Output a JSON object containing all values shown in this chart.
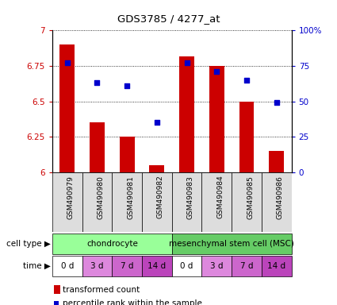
{
  "title": "GDS3785 / 4277_at",
  "samples": [
    "GSM490979",
    "GSM490980",
    "GSM490981",
    "GSM490982",
    "GSM490983",
    "GSM490984",
    "GSM490985",
    "GSM490986"
  ],
  "bar_values": [
    6.9,
    6.35,
    6.25,
    6.05,
    6.82,
    6.75,
    6.5,
    6.15
  ],
  "dot_values": [
    0.77,
    0.635,
    0.61,
    0.35,
    0.77,
    0.71,
    0.65,
    0.49
  ],
  "ylim": [
    6.0,
    7.0
  ],
  "yticks": [
    6.0,
    6.25,
    6.5,
    6.75,
    7.0
  ],
  "ytick_labels": [
    "6",
    "6.25",
    "6.5",
    "6.75",
    "7"
  ],
  "y2tick_labels": [
    "100%",
    "75",
    "50",
    "25",
    "0"
  ],
  "bar_color": "#cc0000",
  "dot_color": "#0000cc",
  "bar_bottom": 6.0,
  "cell_type_groups": [
    {
      "label": "chondrocyte",
      "start": 0,
      "end": 4,
      "color": "#99ff99"
    },
    {
      "label": "mesenchymal stem cell (MSC)",
      "start": 4,
      "end": 8,
      "color": "#66cc66"
    }
  ],
  "time_labels": [
    "0 d",
    "3 d",
    "7 d",
    "14 d",
    "0 d",
    "3 d",
    "7 d",
    "14 d"
  ],
  "time_colors": [
    "#ffffff",
    "#dd88dd",
    "#cc66cc",
    "#bb44bb",
    "#ffffff",
    "#dd88dd",
    "#cc66cc",
    "#bb44bb"
  ],
  "legend_bar_label": "transformed count",
  "legend_dot_label": "percentile rank within the sample",
  "tick_color_left": "#cc0000",
  "tick_color_right": "#0000cc",
  "grid_color": "#000000",
  "background_color": "#ffffff",
  "sample_bg": "#dddddd",
  "label_color_cell": "#000000",
  "label_color_time": "#000000"
}
